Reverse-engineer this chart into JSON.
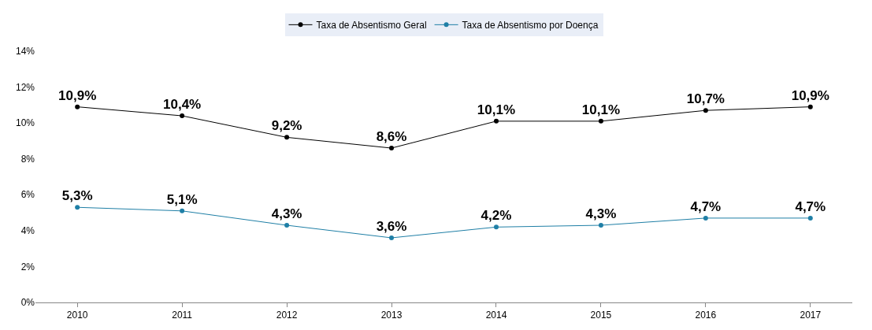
{
  "chart_data": {
    "type": "line",
    "categories": [
      "2010",
      "2011",
      "2012",
      "2013",
      "2014",
      "2015",
      "2016",
      "2017"
    ],
    "series": [
      {
        "name": "Taxa de Absentismo Geral",
        "color": "#000000",
        "values": [
          10.9,
          10.4,
          9.2,
          8.6,
          10.1,
          10.1,
          10.7,
          10.9
        ],
        "value_labels": [
          "10,9%",
          "10,4%",
          "9,2%",
          "8,6%",
          "10,1%",
          "10,1%",
          "10,7%",
          "10,9%"
        ]
      },
      {
        "name": "Taxa de Absentismo por Doença",
        "color": "#1f7fa6",
        "values": [
          5.3,
          5.1,
          4.3,
          3.6,
          4.2,
          4.3,
          4.7,
          4.7
        ],
        "value_labels": [
          "5,3%",
          "5,1%",
          "4,3%",
          "3,6%",
          "4,2%",
          "4,3%",
          "4,7%",
          "4,7%"
        ]
      }
    ],
    "ylim": [
      0,
      14
    ],
    "yticks": [
      {
        "value": 0,
        "label": "0%"
      },
      {
        "value": 2,
        "label": "2%"
      },
      {
        "value": 4,
        "label": "4%"
      },
      {
        "value": 6,
        "label": "6%"
      },
      {
        "value": 8,
        "label": "8%"
      },
      {
        "value": 10,
        "label": "10%"
      },
      {
        "value": 12,
        "label": "12%"
      },
      {
        "value": 14,
        "label": "14%"
      }
    ],
    "legend": "top",
    "marker": "circle",
    "line_style": "solid"
  }
}
